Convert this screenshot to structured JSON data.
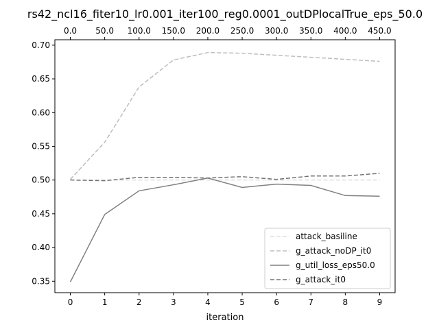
{
  "chart_data": {
    "type": "line",
    "title": "rs42_ncl16_fiter10_lr0.001_iter100_reg0.0001_outDPlocalTrue_eps_50.0",
    "xlabel": "iteration",
    "ylabel": "",
    "x": [
      0,
      1,
      2,
      3,
      4,
      5,
      6,
      7,
      8,
      9
    ],
    "xlim": [
      -0.45,
      9.45
    ],
    "ylim": [
      0.333,
      0.708
    ],
    "x_ticks": [
      "0",
      "1",
      "2",
      "3",
      "4",
      "5",
      "6",
      "7",
      "8",
      "9"
    ],
    "y_ticks": [
      "0.35",
      "0.40",
      "0.45",
      "0.50",
      "0.55",
      "0.60",
      "0.65",
      "0.70"
    ],
    "top_axis_ticks": [
      {
        "x": 0,
        "label": "0.0"
      },
      {
        "x": 1,
        "label": "50.0"
      },
      {
        "x": 2,
        "label": "100.0"
      },
      {
        "x": 3,
        "label": "150.0"
      },
      {
        "x": 4,
        "label": "200.0"
      },
      {
        "x": 5,
        "label": "250.0"
      },
      {
        "x": 6,
        "label": "300.0"
      },
      {
        "x": 7,
        "label": "350.0"
      },
      {
        "x": 8,
        "label": "400.0"
      },
      {
        "x": 9,
        "label": "450.0"
      }
    ],
    "grid": false,
    "legend_position": "lower-right",
    "series": [
      {
        "name": "attack_basiline",
        "values": [
          0.5,
          0.5,
          0.5,
          0.5,
          0.5,
          0.5,
          0.5,
          0.5,
          0.5,
          0.5
        ],
        "color": "#dddddd",
        "dash": "dashed"
      },
      {
        "name": "g_attack_noDP_it0",
        "values": [
          0.501,
          0.556,
          0.638,
          0.678,
          0.689,
          0.688,
          0.685,
          0.682,
          0.679,
          0.676
        ],
        "color": "#bdbdbd",
        "dash": "dashed"
      },
      {
        "name": "g_util_loss_eps50.0",
        "values": [
          0.349,
          0.449,
          0.484,
          0.493,
          0.503,
          0.489,
          0.494,
          0.492,
          0.477,
          0.476
        ],
        "color": "#808080",
        "dash": "solid"
      },
      {
        "name": "g_attack_it0",
        "values": [
          0.5,
          0.499,
          0.504,
          0.504,
          0.503,
          0.505,
          0.501,
          0.506,
          0.506,
          0.51
        ],
        "color": "#737373",
        "dash": "dashed"
      }
    ]
  }
}
